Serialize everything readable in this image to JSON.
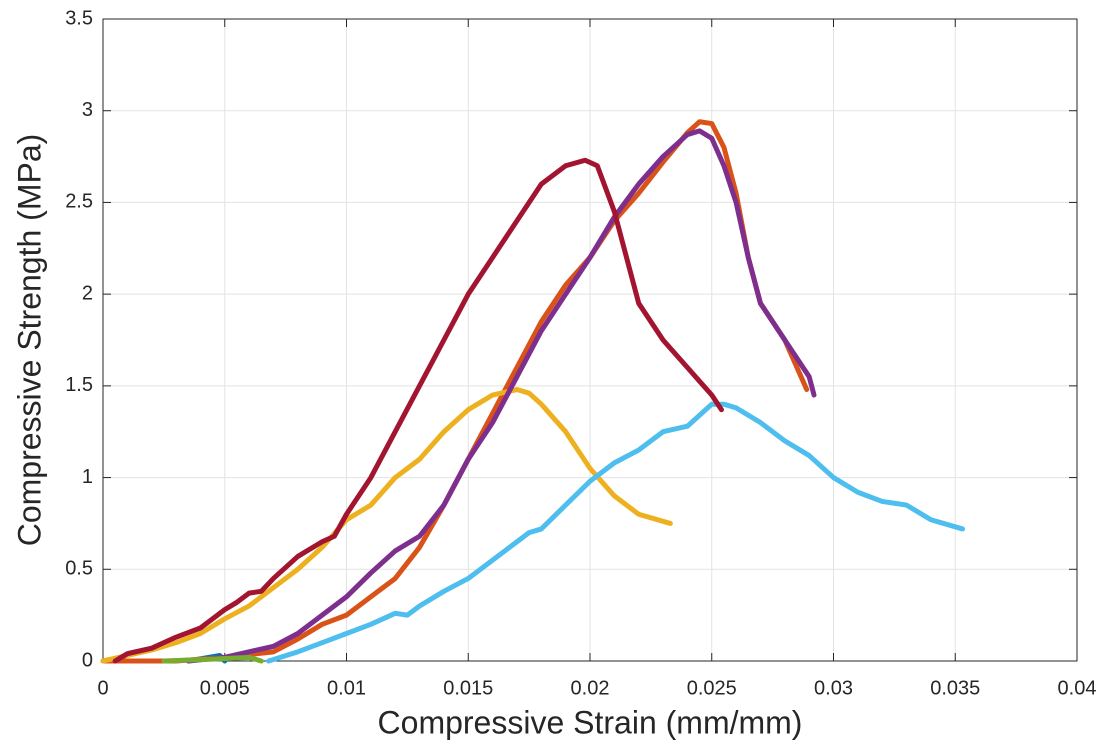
{
  "chart_data": {
    "type": "line",
    "xlabel": "Compressive Strain (mm/mm)",
    "ylabel": "Compressive Strength (MPa)",
    "xlim": [
      0,
      0.04
    ],
    "xticks": [
      0,
      0.005,
      0.01,
      0.015,
      0.02,
      0.025,
      0.03,
      0.035,
      0.04
    ],
    "ylim": [
      0,
      3.5
    ],
    "yticks": [
      0,
      0.5,
      1,
      1.5,
      2,
      2.5,
      3,
      3.5
    ],
    "grid": true,
    "series": [
      {
        "color": "#0072BD",
        "x": [
          0.0035,
          0.0048,
          0.005
        ],
        "values": [
          0,
          0.03,
          0
        ]
      },
      {
        "color": "#D95319",
        "x": [
          0,
          0.003,
          0.005,
          0.007,
          0.008,
          0.009,
          0.01,
          0.011,
          0.012,
          0.013,
          0.014,
          0.015,
          0.016,
          0.017,
          0.018,
          0.019,
          0.02,
          0.021,
          0.022,
          0.023,
          0.024,
          0.0245,
          0.025,
          0.0255,
          0.026,
          0.0265,
          0.027,
          0.028,
          0.0289
        ],
        "values": [
          0,
          0,
          0.02,
          0.05,
          0.12,
          0.2,
          0.25,
          0.35,
          0.45,
          0.62,
          0.85,
          1.1,
          1.35,
          1.6,
          1.85,
          2.05,
          2.2,
          2.4,
          2.55,
          2.72,
          2.88,
          2.94,
          2.93,
          2.8,
          2.55,
          2.2,
          1.95,
          1.75,
          1.48
        ]
      },
      {
        "color": "#EDB120",
        "x": [
          0,
          0.001,
          0.002,
          0.003,
          0.004,
          0.005,
          0.006,
          0.007,
          0.008,
          0.009,
          0.01,
          0.011,
          0.012,
          0.013,
          0.014,
          0.015,
          0.016,
          0.017,
          0.0175,
          0.018,
          0.019,
          0.02,
          0.021,
          0.022,
          0.0233
        ],
        "values": [
          0,
          0.03,
          0.06,
          0.1,
          0.15,
          0.23,
          0.3,
          0.4,
          0.5,
          0.62,
          0.77,
          0.85,
          1.0,
          1.1,
          1.25,
          1.37,
          1.45,
          1.48,
          1.46,
          1.4,
          1.25,
          1.05,
          0.9,
          0.8,
          0.75
        ]
      },
      {
        "color": "#7E2F8E",
        "x": [
          0.0035,
          0.005,
          0.006,
          0.007,
          0.008,
          0.009,
          0.01,
          0.011,
          0.012,
          0.013,
          0.014,
          0.015,
          0.016,
          0.017,
          0.018,
          0.019,
          0.02,
          0.021,
          0.022,
          0.023,
          0.024,
          0.0245,
          0.025,
          0.0255,
          0.026,
          0.0265,
          0.027,
          0.028,
          0.029,
          0.0292
        ],
        "values": [
          0,
          0.02,
          0.05,
          0.08,
          0.15,
          0.25,
          0.35,
          0.48,
          0.6,
          0.68,
          0.85,
          1.1,
          1.3,
          1.55,
          1.8,
          2.0,
          2.2,
          2.42,
          2.6,
          2.75,
          2.87,
          2.89,
          2.85,
          2.7,
          2.5,
          2.2,
          1.95,
          1.75,
          1.55,
          1.45
        ]
      },
      {
        "color": "#77AC30",
        "x": [
          0.0025,
          0.0045,
          0.006,
          0.0065
        ],
        "values": [
          0,
          0.01,
          0.02,
          0
        ]
      },
      {
        "color": "#4DBEEE",
        "x": [
          0.0068,
          0.008,
          0.009,
          0.01,
          0.011,
          0.012,
          0.0125,
          0.013,
          0.014,
          0.015,
          0.016,
          0.017,
          0.0175,
          0.018,
          0.019,
          0.02,
          0.021,
          0.022,
          0.023,
          0.024,
          0.025,
          0.0255,
          0.026,
          0.027,
          0.028,
          0.029,
          0.03,
          0.031,
          0.032,
          0.033,
          0.034,
          0.0353
        ],
        "values": [
          0,
          0.05,
          0.1,
          0.15,
          0.2,
          0.26,
          0.25,
          0.3,
          0.38,
          0.45,
          0.55,
          0.65,
          0.7,
          0.72,
          0.85,
          0.98,
          1.08,
          1.15,
          1.25,
          1.28,
          1.4,
          1.4,
          1.38,
          1.3,
          1.2,
          1.12,
          1.0,
          0.92,
          0.87,
          0.85,
          0.77,
          0.72
        ]
      },
      {
        "color": "#A2142F",
        "x": [
          0.0005,
          0.001,
          0.002,
          0.003,
          0.004,
          0.005,
          0.0055,
          0.006,
          0.0065,
          0.007,
          0.008,
          0.009,
          0.0095,
          0.01,
          0.011,
          0.012,
          0.013,
          0.014,
          0.015,
          0.016,
          0.017,
          0.018,
          0.019,
          0.0198,
          0.0203,
          0.021,
          0.0215,
          0.022,
          0.023,
          0.024,
          0.025,
          0.0254
        ],
        "values": [
          0,
          0.04,
          0.07,
          0.13,
          0.18,
          0.28,
          0.32,
          0.37,
          0.38,
          0.45,
          0.57,
          0.65,
          0.68,
          0.8,
          1.0,
          1.25,
          1.5,
          1.75,
          2.0,
          2.2,
          2.4,
          2.6,
          2.7,
          2.73,
          2.7,
          2.45,
          2.2,
          1.95,
          1.75,
          1.6,
          1.45,
          1.37
        ]
      }
    ]
  }
}
